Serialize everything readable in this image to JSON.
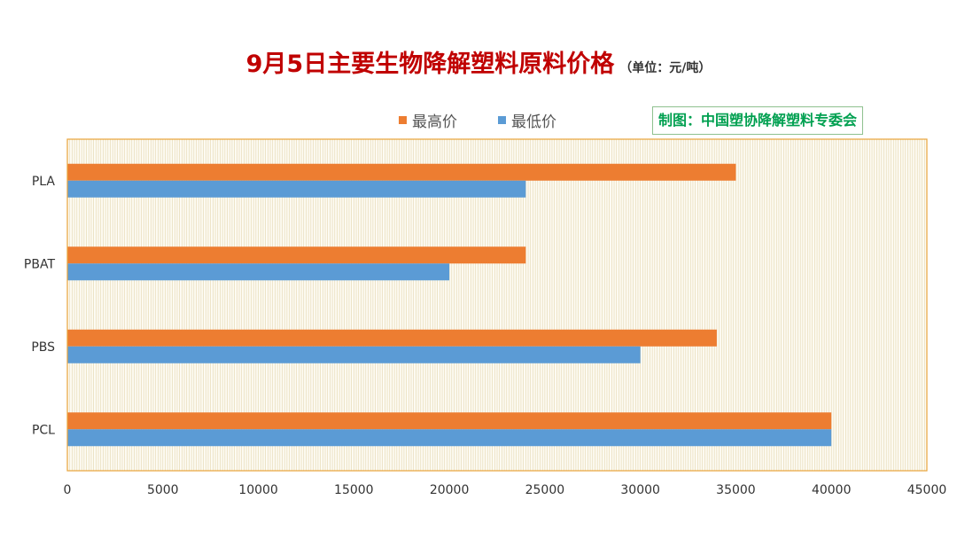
{
  "title": {
    "main": "9月5日主要生物降解塑料原料价格",
    "unit": "（单位：元/吨）"
  },
  "credit": "制图：中国塑协降解塑料专委会",
  "colors": {
    "max": "#ed7d31",
    "min": "#5b9bd5",
    "title": "#c00000",
    "credit": "#00a050",
    "border": "#e8a33a"
  },
  "chart_data": {
    "type": "bar",
    "orientation": "horizontal",
    "categories": [
      "PLA",
      "PBAT",
      "PBS",
      "PCL"
    ],
    "series": [
      {
        "name": "最高价",
        "values": [
          35000,
          24000,
          34000,
          40000
        ]
      },
      {
        "name": "最低价",
        "values": [
          24000,
          20000,
          30000,
          40000
        ]
      }
    ],
    "xlim": [
      0,
      45000
    ],
    "xticks": [
      "0",
      "5000",
      "10000",
      "15000",
      "20000",
      "25000",
      "30000",
      "35000",
      "40000",
      "45000"
    ],
    "legend_position": "top",
    "grid": true
  }
}
